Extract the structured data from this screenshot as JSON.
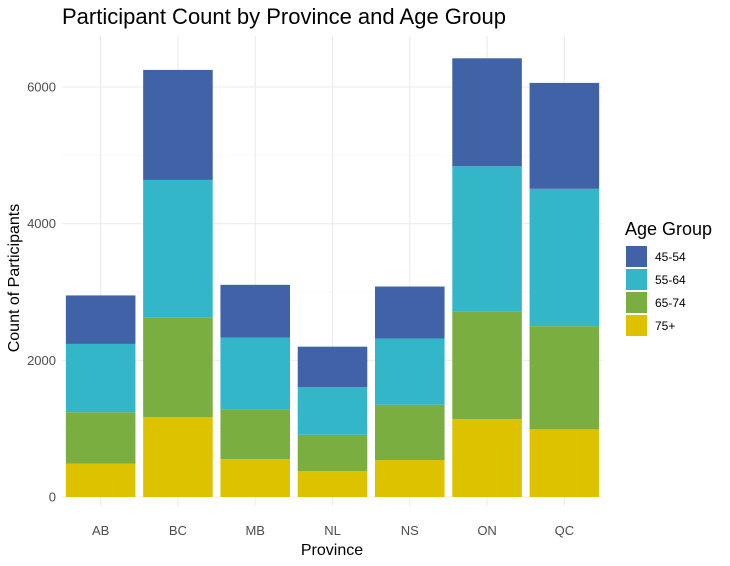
{
  "chart_data": {
    "type": "bar",
    "stacked": true,
    "title": "Participant Count by Province and Age Group",
    "xlabel": "Province",
    "ylabel": "Count of Participants",
    "categories": [
      "AB",
      "BC",
      "MB",
      "NL",
      "NS",
      "ON",
      "QC"
    ],
    "ylim": [
      0,
      6600
    ],
    "yticks": [
      0,
      2000,
      4000,
      6000
    ],
    "yticks_labels": [
      "0",
      "2000",
      "4000",
      "6000"
    ],
    "grid": true,
    "legend": {
      "title": "Age Group",
      "position": "right"
    },
    "series": [
      {
        "name": "75+",
        "color": "#DDC200",
        "values": [
          490,
          1170,
          555,
          380,
          540,
          1140,
          990
        ]
      },
      {
        "name": "65-74",
        "color": "#7BAE41",
        "values": [
          750,
          1460,
          730,
          530,
          810,
          1570,
          1510
        ]
      },
      {
        "name": "55-64",
        "color": "#33B6C8",
        "values": [
          1000,
          2010,
          1050,
          700,
          970,
          2130,
          2010
        ]
      },
      {
        "name": "45-54",
        "color": "#3F63A6",
        "values": [
          710,
          1610,
          770,
          590,
          760,
          1580,
          1550
        ]
      }
    ],
    "legend_order": [
      "45-54",
      "55-64",
      "65-74",
      "75+"
    ]
  }
}
